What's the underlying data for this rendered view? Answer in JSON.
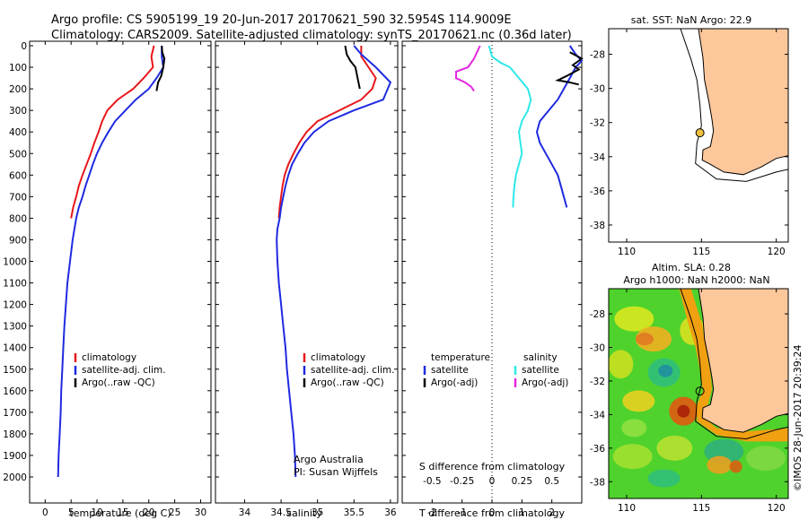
{
  "header": {
    "line1": "Argo profile: CS 5905199_19 20-Jun-2017 20170621_590 32.5954S 114.9009E",
    "line2": "Climatology: CARS2009. Satellite-adjusted climatology: synTS_20170621.nc (0.36d later)"
  },
  "colors": {
    "climatology": "#e8161b",
    "satellite": "#1f2ae0",
    "argo": "#000000",
    "salinity_sat": "#2ee8e8",
    "salinity_argo": "#e626e0",
    "land": "#fdc79c",
    "marker": "#f0c040"
  },
  "chart_data": [
    {
      "id": "temperature",
      "type": "line",
      "xlabel": "temperature (deg C)",
      "ylabel": "",
      "xlim": [
        -3,
        32
      ],
      "ylim": [
        2100,
        0
      ],
      "xticks": [
        0,
        5,
        10,
        15,
        20,
        25,
        30
      ],
      "yticks": [
        0,
        100,
        200,
        300,
        400,
        500,
        600,
        700,
        800,
        900,
        1000,
        1100,
        1200,
        1300,
        1400,
        1500,
        1600,
        1700,
        1800,
        1900,
        2000
      ],
      "series": [
        {
          "name": "climatology",
          "color": "#e8161b",
          "points": [
            [
              21,
              0
            ],
            [
              20.5,
              50
            ],
            [
              20.8,
              100
            ],
            [
              19,
              150
            ],
            [
              17,
              200
            ],
            [
              14,
              250
            ],
            [
              12,
              300
            ],
            [
              11,
              350
            ],
            [
              10.3,
              400
            ],
            [
              9.5,
              450
            ],
            [
              8.8,
              500
            ],
            [
              8,
              550
            ],
            [
              7.2,
              600
            ],
            [
              6.5,
              650
            ],
            [
              6,
              700
            ],
            [
              5.4,
              750
            ],
            [
              5,
              800
            ]
          ]
        },
        {
          "name": "satellite-adj. clim.",
          "color": "#1f2ae0",
          "points": [
            [
              22.5,
              0
            ],
            [
              22.5,
              50
            ],
            [
              22.8,
              100
            ],
            [
              21.5,
              150
            ],
            [
              20,
              200
            ],
            [
              17.5,
              250
            ],
            [
              15.5,
              300
            ],
            [
              13.5,
              350
            ],
            [
              12.2,
              400
            ],
            [
              11,
              450
            ],
            [
              10,
              500
            ],
            [
              9.2,
              550
            ],
            [
              8.5,
              600
            ],
            [
              7.8,
              650
            ],
            [
              7.2,
              700
            ],
            [
              6.5,
              750
            ],
            [
              6,
              800
            ],
            [
              5.3,
              900
            ],
            [
              4.8,
              1000
            ],
            [
              4.3,
              1100
            ],
            [
              4,
              1200
            ],
            [
              3.7,
              1300
            ],
            [
              3.5,
              1400
            ],
            [
              3.3,
              1500
            ],
            [
              3.1,
              1600
            ],
            [
              3,
              1700
            ],
            [
              2.8,
              1800
            ],
            [
              2.6,
              1900
            ],
            [
              2.5,
              2000
            ]
          ]
        },
        {
          "name": "Argo(..raw -QC)",
          "color": "#000000",
          "points": [
            [
              22.5,
              0
            ],
            [
              22.6,
              30
            ],
            [
              23,
              60
            ],
            [
              22.8,
              100
            ],
            [
              22.4,
              140
            ],
            [
              21.8,
              170
            ],
            [
              21.5,
              210
            ]
          ]
        }
      ],
      "legend": [
        "climatology",
        "satellite-adj. clim.",
        "Argo(..raw -QC)"
      ]
    },
    {
      "id": "salinity",
      "type": "line",
      "xlabel": "salinity",
      "ylabel": "",
      "xlim": [
        33.6,
        36.1
      ],
      "ylim": [
        2100,
        0
      ],
      "xticks": [
        34,
        34.5,
        35,
        35.5,
        36
      ],
      "series": [
        {
          "name": "climatology",
          "color": "#e8161b",
          "points": [
            [
              35.6,
              0
            ],
            [
              35.6,
              50
            ],
            [
              35.7,
              100
            ],
            [
              35.8,
              150
            ],
            [
              35.75,
              200
            ],
            [
              35.6,
              250
            ],
            [
              35.3,
              300
            ],
            [
              35.0,
              350
            ],
            [
              34.85,
              400
            ],
            [
              34.75,
              450
            ],
            [
              34.67,
              500
            ],
            [
              34.6,
              550
            ],
            [
              34.55,
              600
            ],
            [
              34.52,
              650
            ],
            [
              34.5,
              700
            ],
            [
              34.48,
              750
            ],
            [
              34.47,
              800
            ]
          ]
        },
        {
          "name": "satellite-adj. clim.",
          "color": "#1f2ae0",
          "points": [
            [
              35.5,
              0
            ],
            [
              35.6,
              40
            ],
            [
              35.8,
              100
            ],
            [
              36,
              170
            ],
            [
              35.9,
              250
            ],
            [
              35.5,
              300
            ],
            [
              35.15,
              350
            ],
            [
              34.95,
              400
            ],
            [
              34.82,
              450
            ],
            [
              34.73,
              500
            ],
            [
              34.65,
              550
            ],
            [
              34.6,
              600
            ],
            [
              34.56,
              650
            ],
            [
              34.53,
              700
            ],
            [
              34.5,
              750
            ],
            [
              34.48,
              800
            ],
            [
              34.45,
              850
            ],
            [
              34.44,
              900
            ],
            [
              34.45,
              1000
            ],
            [
              34.47,
              1100
            ],
            [
              34.5,
              1200
            ],
            [
              34.53,
              1300
            ],
            [
              34.56,
              1400
            ],
            [
              34.58,
              1500
            ],
            [
              34.61,
              1600
            ],
            [
              34.64,
              1700
            ],
            [
              34.67,
              1800
            ],
            [
              34.69,
              1900
            ],
            [
              34.7,
              2000
            ]
          ]
        },
        {
          "name": "Argo(..raw -QC)",
          "color": "#000000",
          "points": [
            [
              35.38,
              0
            ],
            [
              35.4,
              40
            ],
            [
              35.45,
              70
            ],
            [
              35.52,
              100
            ],
            [
              35.55,
              150
            ],
            [
              35.58,
              200
            ]
          ]
        }
      ],
      "legend": [
        "climatology",
        "satellite-adj. clim.",
        "Argo(..raw -QC)"
      ],
      "annotations": [
        "Argo Australia",
        "PI: Susan Wijffels"
      ]
    },
    {
      "id": "difference",
      "type": "line",
      "xlabel": "T difference from climatology",
      "xlabel_top": "S difference from climatology",
      "xlim": [
        -3,
        3
      ],
      "ylim": [
        800,
        0
      ],
      "xticks_T": [
        -2,
        -1,
        0,
        1,
        2
      ],
      "xticks_S": [
        -0.5,
        -0.25,
        0,
        0.25,
        0.5
      ],
      "zero_line": 0,
      "legend_groups": {
        "temperature": [
          "satellite",
          "Argo(-adj)"
        ],
        "salinity": [
          "satellite",
          "Argo(-adj)"
        ]
      },
      "series": [
        {
          "name": "temperature satellite",
          "color": "#1f2ae0",
          "points": [
            [
              2.6,
              0
            ],
            [
              2.8,
              40
            ],
            [
              3,
              70
            ],
            [
              2.8,
              100
            ],
            [
              2.6,
              150
            ],
            [
              2.4,
              200
            ],
            [
              2.2,
              250
            ],
            [
              1.9,
              300
            ],
            [
              1.6,
              350
            ],
            [
              1.5,
              400
            ],
            [
              1.6,
              450
            ],
            [
              1.8,
              500
            ],
            [
              2.0,
              550
            ],
            [
              2.2,
              600
            ],
            [
              2.3,
              650
            ],
            [
              2.4,
              700
            ],
            [
              2.5,
              750
            ]
          ]
        },
        {
          "name": "temperature Argo(-adj)",
          "color": "#000000",
          "points": [
            [
              2.6,
              30
            ],
            [
              3.0,
              60
            ],
            [
              2.7,
              90
            ],
            [
              2.9,
              110
            ],
            [
              2.5,
              140
            ],
            [
              2.2,
              160
            ],
            [
              2.6,
              170
            ],
            [
              2.9,
              180
            ]
          ]
        },
        {
          "name": "salinity satellite",
          "color": "#2ee8e8",
          "points": [
            [
              -0.1,
              0
            ],
            [
              0,
              50
            ],
            [
              0.3,
              80
            ],
            [
              0.6,
              100
            ],
            [
              0.9,
              150
            ],
            [
              1.2,
              200
            ],
            [
              1.3,
              250
            ],
            [
              1.2,
              300
            ],
            [
              1.0,
              350
            ],
            [
              0.9,
              400
            ],
            [
              0.95,
              450
            ],
            [
              1.0,
              500
            ],
            [
              0.9,
              550
            ],
            [
              0.8,
              600
            ],
            [
              0.75,
              650
            ],
            [
              0.72,
              700
            ],
            [
              0.7,
              750
            ]
          ]
        },
        {
          "name": "salinity Argo(-adj)",
          "color": "#e626e0",
          "points": [
            [
              -0.4,
              0
            ],
            [
              -0.6,
              60
            ],
            [
              -0.8,
              100
            ],
            [
              -1.2,
              120
            ],
            [
              -1.2,
              150
            ],
            [
              -0.9,
              170
            ],
            [
              -0.7,
              190
            ],
            [
              -0.6,
              210
            ]
          ]
        }
      ]
    }
  ],
  "map_sst": {
    "title": "sat. SST: NaN Argo: 22.9",
    "xticks": [
      110,
      115,
      120
    ],
    "yticks": [
      -28,
      -30,
      -32,
      -34,
      -36,
      -38
    ],
    "xlim": [
      108.8,
      120.8
    ],
    "ylim": [
      -39,
      -26.5
    ],
    "float_lon": 114.9,
    "float_lat": -32.6
  },
  "map_sla": {
    "title_line1": "Altim. SLA: 0.28",
    "title_line2": "Argo h1000: NaN h2000: NaN",
    "xticks": [
      110,
      115,
      120
    ],
    "yticks": [
      -28,
      -30,
      -32,
      -34,
      -36,
      -38
    ],
    "xlim": [
      108.8,
      120.8
    ],
    "ylim": [
      -39,
      -26.5
    ],
    "float_lon": 114.9,
    "float_lat": -32.6
  },
  "legends": {
    "temperature": [
      "climatology",
      "satellite-adj. clim.",
      "Argo(..raw -QC)"
    ],
    "salinity": [
      "climatology",
      "satellite-adj. clim.",
      "Argo(..raw -QC)"
    ],
    "diff_temp_header": "temperature",
    "diff_sal_header": "salinity",
    "diff_items": [
      "satellite",
      "Argo(-adj)"
    ]
  },
  "credit": "Argo Australia",
  "pi": "PI: Susan Wijffels",
  "timestamp": "©IMOS 28-Jun-2017 20:39:24"
}
